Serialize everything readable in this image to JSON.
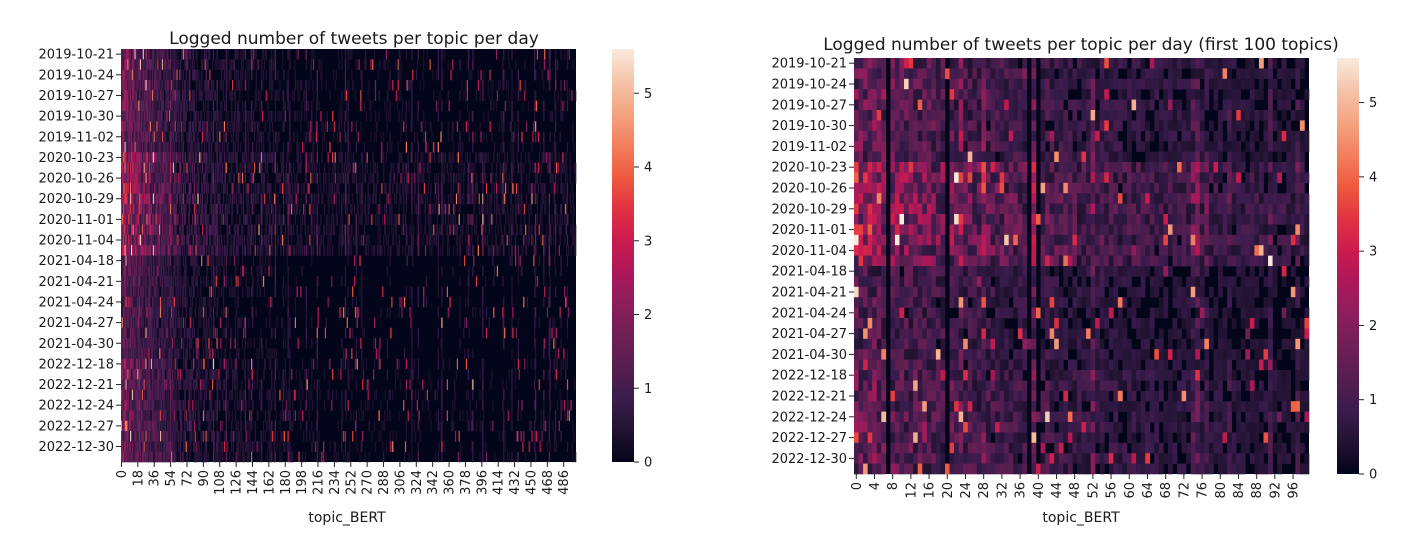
{
  "chart_data": [
    {
      "type": "heatmap",
      "title": "Logged number of tweets per topic per day",
      "xlabel": "topic_BERT",
      "ylabel": "",
      "n_topics": 500,
      "x_tick_labels": [
        "0",
        "18",
        "36",
        "54",
        "72",
        "90",
        "108",
        "126",
        "144",
        "162",
        "180",
        "198",
        "216",
        "234",
        "252",
        "270",
        "288",
        "306",
        "324",
        "342",
        "360",
        "378",
        "396",
        "414",
        "432",
        "450",
        "468",
        "486"
      ],
      "y_tick_labels": [
        "2019-10-21",
        "2019-10-24",
        "2019-10-27",
        "2019-10-30",
        "2019-11-02",
        "2020-10-23",
        "2020-10-26",
        "2020-10-29",
        "2020-11-01",
        "2020-11-04",
        "2021-04-18",
        "2021-04-21",
        "2021-04-24",
        "2021-04-27",
        "2021-04-30",
        "2022-12-18",
        "2022-12-21",
        "2022-12-24",
        "2022-12-27",
        "2022-12-30"
      ],
      "n_days": 40,
      "colorbar": {
        "min": 0,
        "max": 5.6,
        "ticks": [
          "0",
          "1",
          "2",
          "3",
          "4",
          "5"
        ]
      },
      "colormap": "rocket",
      "cmap_stops": [
        "#03051a",
        "#221331",
        "#3a1c4d",
        "#571e4f",
        "#701f57",
        "#8d1e5b",
        "#ae1759",
        "#cb1b4f",
        "#e13342",
        "#ef5a3e",
        "#f3805f",
        "#f4a481",
        "#f5c4aa",
        "#faebdd"
      ]
    },
    {
      "type": "heatmap",
      "title": "Logged number of tweets per topic per day (first 100 topics)",
      "xlabel": "topic_BERT",
      "ylabel": "",
      "n_topics": 100,
      "x_tick_labels": [
        "0",
        "4",
        "8",
        "12",
        "16",
        "20",
        "24",
        "28",
        "32",
        "36",
        "40",
        "44",
        "48",
        "52",
        "56",
        "60",
        "64",
        "68",
        "72",
        "76",
        "80",
        "84",
        "88",
        "92",
        "96"
      ],
      "y_tick_labels": [
        "2019-10-21",
        "2019-10-24",
        "2019-10-27",
        "2019-10-30",
        "2019-11-02",
        "2020-10-23",
        "2020-10-26",
        "2020-10-29",
        "2020-11-01",
        "2020-11-04",
        "2021-04-18",
        "2021-04-21",
        "2021-04-24",
        "2021-04-27",
        "2021-04-30",
        "2022-12-18",
        "2022-12-21",
        "2022-12-24",
        "2022-12-27",
        "2022-12-30"
      ],
      "n_days": 40,
      "colorbar": {
        "min": 0,
        "max": 5.6,
        "ticks": [
          "0",
          "1",
          "2",
          "3",
          "4",
          "5"
        ]
      },
      "colormap": "rocket",
      "cmap_stops": [
        "#03051a",
        "#221331",
        "#3a1c4d",
        "#571e4f",
        "#701f57",
        "#8d1e5b",
        "#ae1759",
        "#cb1b4f",
        "#e13342",
        "#ef5a3e",
        "#f3805f",
        "#f4a481",
        "#f5c4aa",
        "#faebdd"
      ]
    }
  ]
}
